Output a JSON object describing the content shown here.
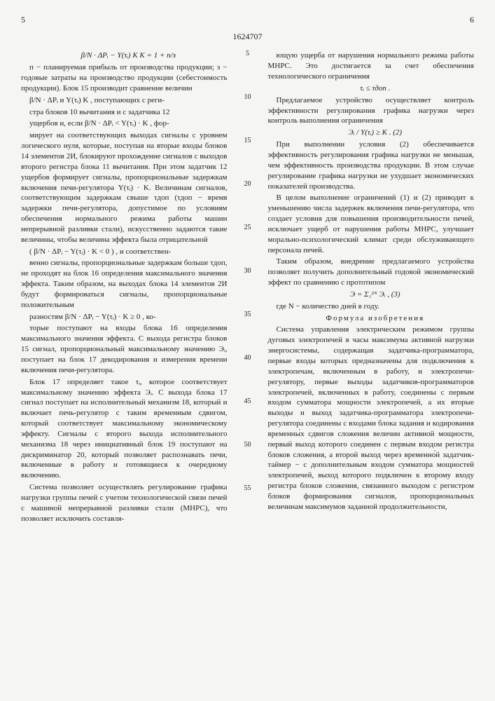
{
  "header": {
    "page_left": "5",
    "page_right": "6",
    "doc_number": "1624707"
  },
  "margins": {
    "m5": "5",
    "m10": "10",
    "m15": "15",
    "m20": "20",
    "m25": "25",
    "m30": "30",
    "m35": "35",
    "m40": "40",
    "m45": "45",
    "m50": "50",
    "m55": "55"
  },
  "left": {
    "f1": "β/N · ΔPᵢ − Y(τᵢ) K   K = 1 + п/з",
    "p1": "п − планируемая прибыль от производства продукции; з − годовые затраты на производство продукции (себестоимость продукции). Блок 15 производит сравнение величин",
    "f2": "β/N · ΔPᵢ и Y(τᵢ) K , поступающих с реги-",
    "p2": "стра блоков 10 вычитания и с задатчика 12",
    "f3": "ущербов и, если β/N · ΔPᵢ < Y(τᵢ) · K , фор-",
    "p3": "мирует на соответствующих выходах сигналы с уровнем логического нуля, которые, поступая на вторые входы блоков 14 элементов 2И, блокируют прохождение сигналов с выходов второго регистра блока 11 вычитания. При этом задатчик 12 ущербов формирует сигналы, пропорциональные задержкам включения печи-регулятора Y(τᵢ) · K. Величинам сигналов, соответствующим задержкам свыше τдоп (τдоп − время задержки печи-регулятора, допустимое по условиям обеспечения нормального режима работы машин непрерывной разливки стали), искусственно задаются такие величины, чтобы величина эффекта была отрицательной",
    "f4": "( β/N · ΔPᵢ − Y(τᵢ) · K < 0 ) , и соответствен-",
    "p4": "венно сигналы, пропорциональные задержкам больше τдоп, не проходят на блок 16 определения максимального значения эффекта. Таким образом, на выходах блока 14 элементов 2И будут формироваться сигналы, пропорциональные положительным",
    "f5": "разностям β/N · ΔPᵢ − Y(τᵢ) · K ≥ 0 , ко-",
    "p5": "торые поступают на входы блока 16 определения максимального значения эффекта. С выхода регистра блоков 15 сигнал, пропорциональный максимальному значению Эᵢ, поступает на блок 17 декодирования и измерения времени включения печи-регулятора.",
    "p6": "Блок 17 определяет такое τᵢ, которое соответствует максимальному значению эффекта Эᵢ. С выхода блока 17 сигнал поступает на исполнительный механизм 18, который и включает печь-регулятор с таким временным сдвигом, который соответствует максимальному экономическому эффекту. Сигналы с второго выхода исполнительного механизма 18 через инициативный блок 19 поступают на дискриминатор 20, который позволяет распознавать печи, включенные в работу и готовящиеся к очередному включению.",
    "p7": "Система позволяет осуществлять регулирование графика нагрузки группы печей с учетом технологической связи печей с машиной непрерывной разливки стали (МНРС), что позволяет исключить составля-"
  },
  "right": {
    "p1": "ющую ущерба от нарушения нормального режима работы МНРС. Это достигается за счет обеспечения технологического ограничения",
    "f1": "τᵢ ≤ τдоп .",
    "p2": "Предлагаемое устройство осуществляет контроль эффективности регулирования графика нагрузки через контроль выполнения ограничения",
    "f2": "Эᵢ / Y(τᵢ) ≥ K .     (2)",
    "p3": "При выполнении условия (2) обеспечивается эффективность регулирования графика нагрузки не меньшая, чем эффективность производства продукции. В этом случае регулирование графика нагрузки не ухудшает экономических показателей производства.",
    "p4": "В целом выполнение ограничений (1) и (2) приводит к уменьшению числа задержек включения печи-регулятора, что создает условия для повышения производительности печей, исключает ущерб от нарушения работы МНРС, улучшает морально-психологический климат среди обслуживающего персонала печей.",
    "p5": "Таким образом, внедрение предлагаемого устройства позволяет получить дополнительный годовой экономический эффект по сравнению с прототипом",
    "f3": "Э = Σ₁²ᴺ Эᵢ ,     (3)",
    "p6": "где N − количество дней в году.",
    "claim_title": "Формула изобретения",
    "p7": "Система управления электрическим режимом группы дуговых электропечей в часы максимума активной нагрузки энергосистемы, содержащая задатчика-программатора, первые входы которых предназначены для подключения к электропечам, включенным в работу, и электропечи-регулятору, первые выходы задатчиков-программаторов электропечей, включенных в работу, соединены с первым входом сумматора мощности электропечей, а их вторые выходы и выход задатчика-программатора электропечи-регулятора соединены с входами блока задания и кодирования временны́х сдвигов сложения величин активной мощности, первый выход которого соединен с первым входом регистра блоков сложения, а второй выход через временно́й задатчик-таймер − с дополнительным входом сумматора мощностей электропечей, выход которого подключен к второму входу регистра блоков сложения, связанного выходом с регистром блоков формирования сигналов, пропорциональных величинам максимумов заданной продолжительности,"
  }
}
